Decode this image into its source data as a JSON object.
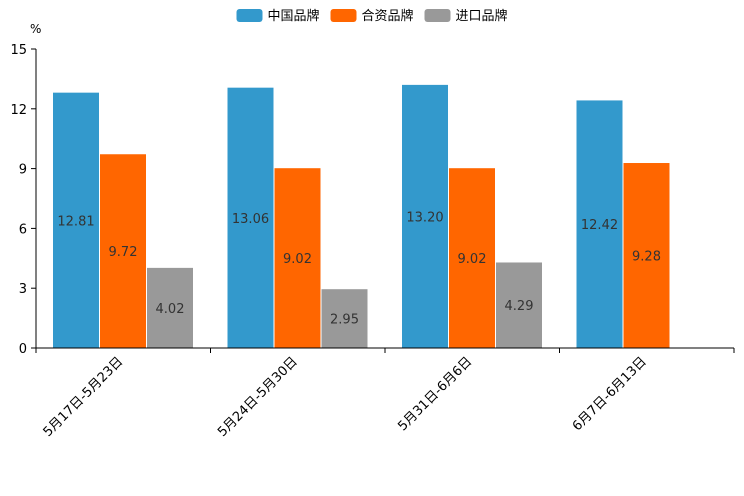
{
  "chart_data": {
    "type": "bar",
    "title": "",
    "xlabel": "",
    "ylabel": "%",
    "ylim": [
      0,
      15
    ],
    "yticks": [
      "0",
      "3",
      "6",
      "9",
      "12",
      "15"
    ],
    "categories": [
      "5月17日-5月23日",
      "5月24日-5月30日",
      "5月31日-6月6日",
      "6月7日-6月13日"
    ],
    "series": [
      {
        "name": "中国品牌",
        "color": "#3399cc",
        "values": [
          12.81,
          13.06,
          13.2,
          12.42
        ],
        "labels": [
          "12.81",
          "13.06",
          "13.20",
          "12.42"
        ]
      },
      {
        "name": "合资品牌",
        "color": "#ff6600",
        "values": [
          9.72,
          9.02,
          9.02,
          9.28
        ],
        "labels": [
          "9.72",
          "9.02",
          "9.02",
          "9.28"
        ]
      },
      {
        "name": "进口品牌",
        "color": "#999999",
        "values": [
          4.02,
          2.95,
          4.29,
          null
        ],
        "labels": [
          "4.02",
          "2.95",
          "4.29",
          null
        ]
      }
    ],
    "legend": "top-center",
    "grid": false
  }
}
